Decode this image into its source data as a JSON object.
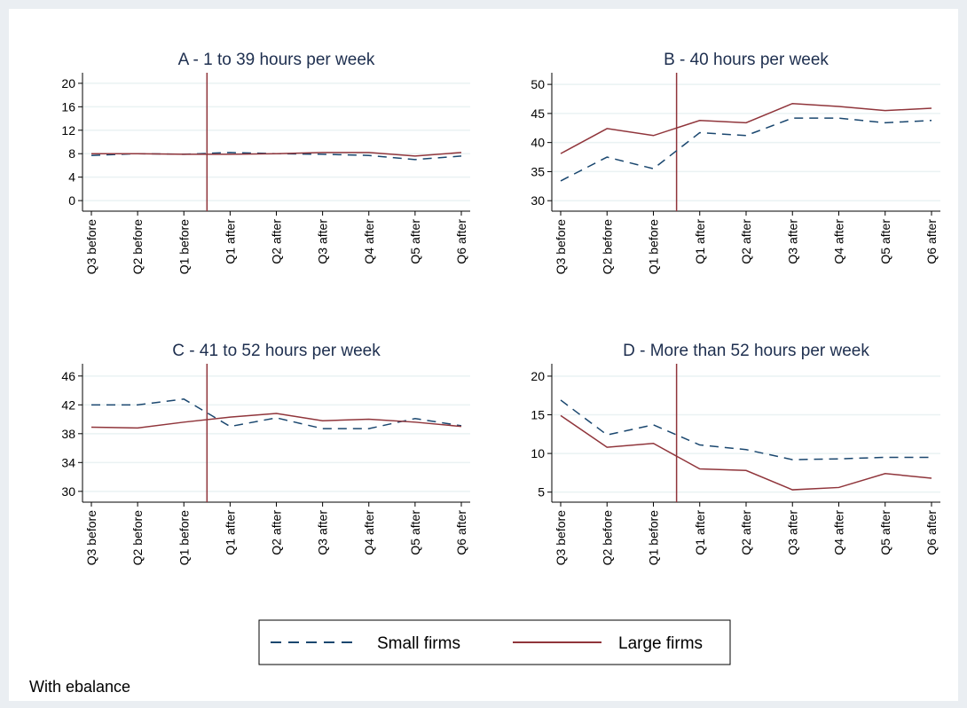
{
  "chart_data": [
    {
      "type": "line",
      "title": "A - 1 to 39 hours per week",
      "categories": [
        "Q3 before",
        "Q2 before",
        "Q1 before",
        "Q1 after",
        "Q2 after",
        "Q3 after",
        "Q4 after",
        "Q5 after",
        "Q6 after"
      ],
      "series": [
        {
          "name": "Small firms",
          "color": "#1a476f",
          "values": [
            7.7,
            8.0,
            7.9,
            8.2,
            8.0,
            7.9,
            7.7,
            7.0,
            7.6
          ]
        },
        {
          "name": "Large firms",
          "color": "#90353b",
          "values": [
            8.0,
            8.0,
            7.9,
            7.9,
            8.0,
            8.2,
            8.2,
            7.6,
            8.2
          ]
        }
      ],
      "ylim": [
        -1.8,
        21.8
      ],
      "yticks": [
        0,
        4,
        8,
        12,
        16,
        20
      ],
      "grid": true
    },
    {
      "type": "line",
      "title": "B - 40 hours per week",
      "categories": [
        "Q3 before",
        "Q2 before",
        "Q1 before",
        "Q1 after",
        "Q2 after",
        "Q3 after",
        "Q4 after",
        "Q5 after",
        "Q6 after"
      ],
      "series": [
        {
          "name": "Small firms",
          "color": "#1a476f",
          "values": [
            33.4,
            37.5,
            35.5,
            41.7,
            41.2,
            44.2,
            44.2,
            43.4,
            43.8
          ]
        },
        {
          "name": "Large firms",
          "color": "#90353b",
          "values": [
            38.1,
            42.4,
            41.2,
            43.8,
            43.4,
            46.7,
            46.2,
            45.5,
            45.9
          ]
        }
      ],
      "ylim": [
        28.2,
        52
      ],
      "yticks": [
        30,
        35,
        40,
        45,
        50
      ],
      "grid": true
    },
    {
      "type": "line",
      "title": "C - 41 to 52 hours per week",
      "categories": [
        "Q3 before",
        "Q2 before",
        "Q1 before",
        "Q1 after",
        "Q2 after",
        "Q3 after",
        "Q4 after",
        "Q5 after",
        "Q6 after"
      ],
      "series": [
        {
          "name": "Small firms",
          "color": "#1a476f",
          "values": [
            42.0,
            42.0,
            42.8,
            39.0,
            40.2,
            38.7,
            38.7,
            40.1,
            39.1
          ]
        },
        {
          "name": "Large firms",
          "color": "#90353b",
          "values": [
            38.9,
            38.8,
            39.6,
            40.3,
            40.8,
            39.8,
            40.0,
            39.6,
            39.0
          ]
        }
      ],
      "ylim": [
        28.5,
        47.7
      ],
      "yticks": [
        30,
        34,
        38,
        42,
        46
      ],
      "grid": true
    },
    {
      "type": "line",
      "title": "D - More than 52 hours per week",
      "categories": [
        "Q3 before",
        "Q2 before",
        "Q1 before",
        "Q1 after",
        "Q2 after",
        "Q3 after",
        "Q4 after",
        "Q5 after",
        "Q6 after"
      ],
      "series": [
        {
          "name": "Small firms",
          "color": "#1a476f",
          "values": [
            16.9,
            12.4,
            13.7,
            11.1,
            10.5,
            9.2,
            9.3,
            9.5,
            9.5
          ]
        },
        {
          "name": "Large firms",
          "color": "#90353b",
          "values": [
            14.9,
            10.8,
            11.3,
            8.0,
            7.8,
            5.3,
            5.6,
            7.4,
            6.8
          ]
        }
      ],
      "ylim": [
        3.7,
        21.6
      ],
      "yticks": [
        5,
        10,
        15,
        20
      ],
      "grid": true
    }
  ],
  "note": "With ebalance"
}
